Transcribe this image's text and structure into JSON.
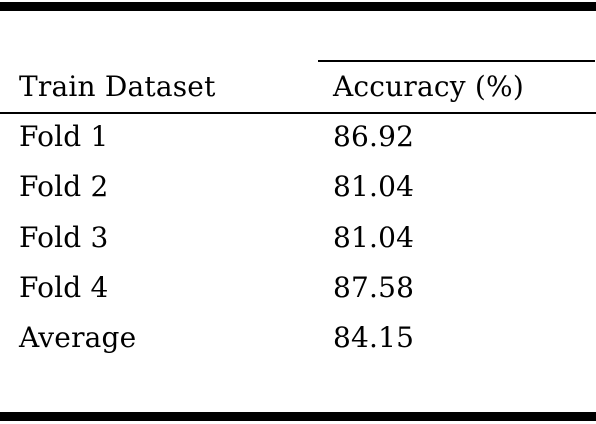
{
  "table": {
    "headers": [
      "Train Dataset",
      "Accuracy (%)"
    ],
    "rows": [
      [
        "Fold 1",
        "86.92"
      ],
      [
        "Fold 2",
        "81.04"
      ],
      [
        "Fold 3",
        "81.04"
      ],
      [
        "Fold 4",
        "87.58"
      ],
      [
        "Average",
        "84.15"
      ]
    ]
  }
}
